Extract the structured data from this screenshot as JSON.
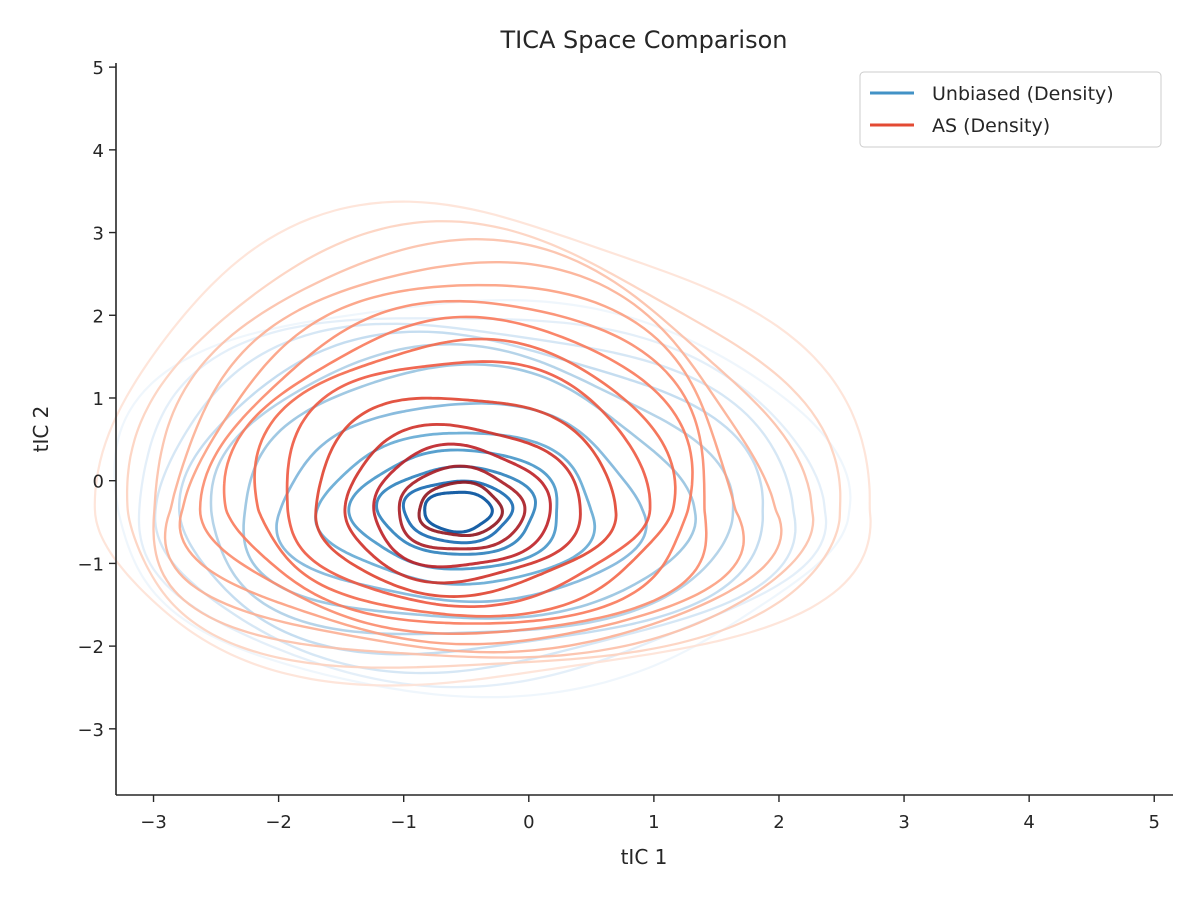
{
  "chart_data": {
    "type": "contour",
    "title": "TICA Space Comparison",
    "xlabel": "tIC 1",
    "ylabel": "tIC 2",
    "xlim": [
      -3.3,
      5.15
    ],
    "ylim": [
      -3.8,
      5.05
    ],
    "xticks": [
      -3,
      -2,
      -1,
      0,
      1,
      2,
      3,
      4,
      5
    ],
    "yticks": [
      -3,
      -2,
      -1,
      0,
      1,
      2,
      3,
      4,
      5
    ],
    "xtick_labels": [
      "−3",
      "−2",
      "−1",
      "0",
      "1",
      "2",
      "3",
      "4",
      "5"
    ],
    "ytick_labels": [
      "−3",
      "−2",
      "−1",
      "0",
      "1",
      "2",
      "3",
      "4",
      "5"
    ],
    "grid": false,
    "legend_position": "top-right",
    "series": [
      {
        "name": "Unbiased (Density)",
        "legend_color": "#4292c6",
        "center": [
          -0.57,
          -0.37
        ],
        "levels": [
          {
            "half_width": 2.78,
            "half_height_up": 2.62,
            "half_height_down": 2.16,
            "color": "#eef5fc"
          },
          {
            "half_width": 2.62,
            "half_height_up": 2.46,
            "half_height_down": 2.02,
            "color": "#e3eef9"
          },
          {
            "half_width": 2.45,
            "half_height_up": 2.28,
            "half_height_down": 1.88,
            "color": "#d4e6f4"
          },
          {
            "half_width": 2.25,
            "half_height_up": 2.1,
            "half_height_down": 1.72,
            "color": "#c2dbef"
          },
          {
            "half_width": 2.02,
            "half_height_up": 1.92,
            "half_height_down": 1.55,
            "color": "#b2d2e8"
          },
          {
            "half_width": 1.75,
            "half_height_up": 1.7,
            "half_height_down": 1.34,
            "color": "#9cc6e2"
          },
          {
            "half_width": 1.42,
            "half_height_up": 1.28,
            "half_height_down": 1.1,
            "color": "#84b8dc"
          },
          {
            "half_width": 1.08,
            "half_height_up": 0.95,
            "half_height_down": 0.88,
            "color": "#6baed6"
          },
          {
            "half_width": 0.82,
            "half_height_up": 0.74,
            "half_height_down": 0.7,
            "color": "#4f9bcb"
          },
          {
            "half_width": 0.62,
            "half_height_up": 0.54,
            "half_height_down": 0.52,
            "color": "#3787c0"
          },
          {
            "half_width": 0.43,
            "half_height_up": 0.37,
            "half_height_down": 0.37,
            "color": "#2271b5"
          },
          {
            "half_width": 0.27,
            "half_height_up": 0.24,
            "half_height_down": 0.24,
            "color": "#0d57a1"
          }
        ]
      },
      {
        "name": "AS (Density)",
        "legend_color": "#e34a33",
        "center": [
          -0.55,
          -0.35
        ],
        "levels": [
          {
            "half_width": 2.95,
            "half_height_up": 3.62,
            "half_height_down": 2.1,
            "color": "#fee2d6"
          },
          {
            "half_width": 2.72,
            "half_height_up": 3.32,
            "half_height_down": 1.98,
            "color": "#fdd2bf"
          },
          {
            "half_width": 2.52,
            "half_height_up": 3.12,
            "half_height_down": 1.86,
            "color": "#fcc0a8"
          },
          {
            "half_width": 2.33,
            "half_height_up": 2.92,
            "half_height_down": 1.74,
            "color": "#fcaf93"
          },
          {
            "half_width": 2.14,
            "half_height_up": 2.72,
            "half_height_down": 1.62,
            "color": "#fc9e7f"
          },
          {
            "half_width": 1.96,
            "half_height_up": 2.52,
            "half_height_down": 1.5,
            "color": "#fb8b6b"
          },
          {
            "half_width": 1.8,
            "half_height_up": 2.32,
            "half_height_down": 1.38,
            "color": "#f9795a"
          },
          {
            "half_width": 1.62,
            "half_height_up": 2.08,
            "half_height_down": 1.26,
            "color": "#f4684a"
          },
          {
            "half_width": 1.42,
            "half_height_up": 1.86,
            "half_height_down": 1.12,
            "color": "#ee5840"
          },
          {
            "half_width": 1.18,
            "half_height_up": 1.4,
            "half_height_down": 1.0,
            "color": "#e0432f"
          },
          {
            "half_width": 0.93,
            "half_height_up": 1.02,
            "half_height_down": 0.86,
            "color": "#cf3028"
          },
          {
            "half_width": 0.7,
            "half_height_up": 0.76,
            "half_height_down": 0.7,
            "color": "#be2026"
          },
          {
            "half_width": 0.5,
            "half_height_up": 0.5,
            "half_height_down": 0.5,
            "color": "#a91b22"
          },
          {
            "half_width": 0.33,
            "half_height_up": 0.32,
            "half_height_down": 0.32,
            "color": "#8f141e"
          }
        ]
      }
    ]
  }
}
